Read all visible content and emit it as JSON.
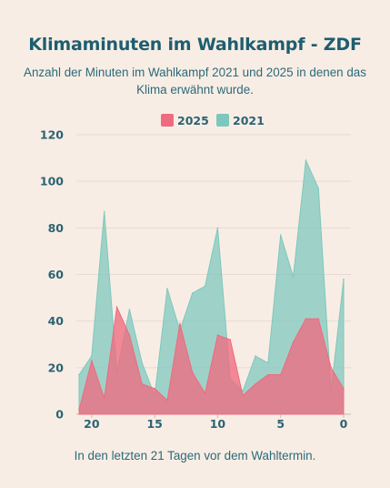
{
  "chart_data": {
    "type": "area",
    "title": "Klimaminuten im Wahlkampf - ZDF",
    "subtitle": "Anzahl der Minuten im Wahlkampf 2021 und 2025 in denen das Klima erwähnt wurde.",
    "xlabel": "In den letzten 21 Tagen vor dem Wahltermin.",
    "ylabel": "",
    "xlim": [
      21,
      0
    ],
    "ylim": [
      0,
      120
    ],
    "x_ticks": [
      20,
      15,
      10,
      5,
      0
    ],
    "y_ticks": [
      0,
      20,
      40,
      60,
      80,
      100,
      120
    ],
    "grid": true,
    "legend_position": "top-center",
    "x": [
      21,
      20,
      19,
      18,
      17,
      16,
      15,
      14,
      13,
      12,
      11,
      10,
      9,
      8,
      7,
      6,
      5,
      4,
      3,
      2,
      1,
      0
    ],
    "series": [
      {
        "name": "2021",
        "color": "#7cc8bd",
        "values": [
          17,
          25,
          87,
          18,
          45,
          22,
          8,
          54,
          36,
          52,
          55,
          80,
          15,
          10,
          25,
          22,
          77,
          59,
          109,
          97,
          10,
          58
        ]
      },
      {
        "name": "2025",
        "color": "#ee6b80",
        "values": [
          2,
          23,
          7,
          46,
          34,
          13,
          11,
          6,
          39,
          18,
          9,
          34,
          32,
          8,
          13,
          17,
          17,
          31,
          41,
          41,
          20,
          11
        ]
      }
    ],
    "legend_order": [
      "2025",
      "2021"
    ]
  }
}
